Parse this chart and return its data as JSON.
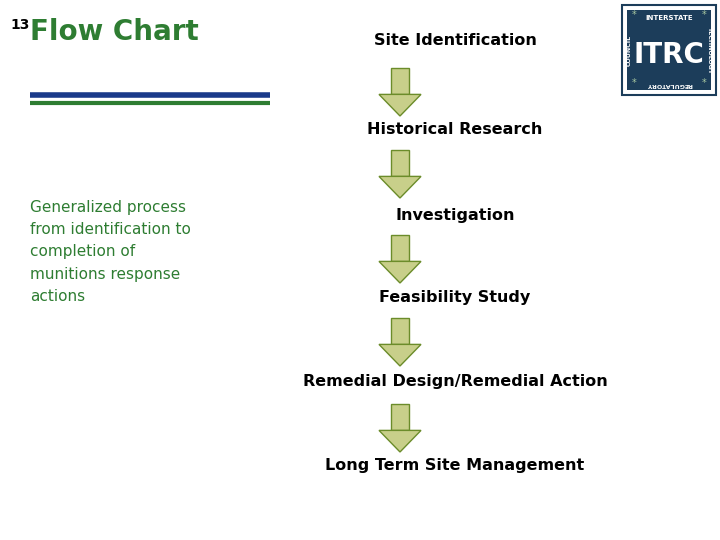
{
  "title": "Flow Chart",
  "slide_number": "13",
  "subtitle_text": "Generalized process\nfrom identification to\ncompletion of\nmunitions response\nactions",
  "title_color": "#2E7D32",
  "subtitle_color": "#2E7D32",
  "bg_color": "#FFFFFF",
  "steps": [
    "Site Identification",
    "Historical Research",
    "Investigation",
    "Feasibility Study",
    "Remedial Design/Remedial Action",
    "Long Term Site Management"
  ],
  "step_text_color": "#000000",
  "arrow_fill_color": "#C8CF8A",
  "arrow_edge_color": "#6B8C2A",
  "line1_color": "#1A3A8A",
  "line2_color": "#2E7D32",
  "logo_bg_color": "#1C3D5A",
  "logo_text_color": "#FFFFFF",
  "logo_border_color": "#1C3D5A"
}
